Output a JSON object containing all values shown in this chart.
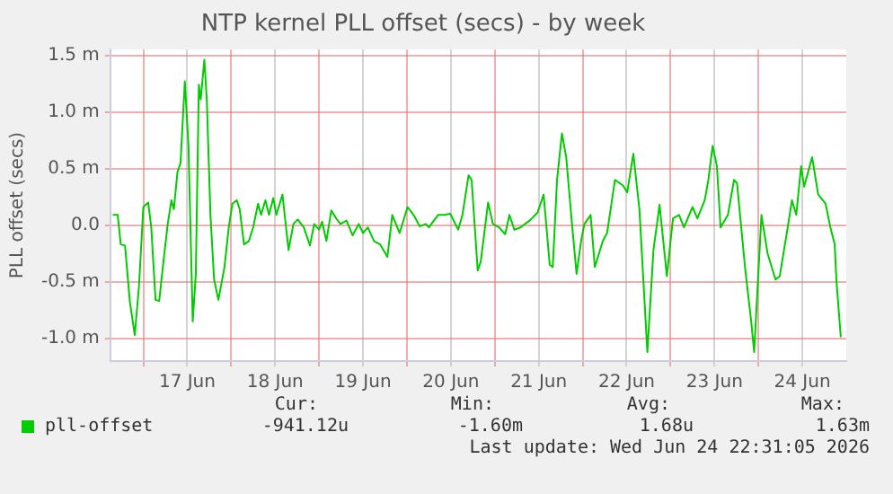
{
  "chart_data": {
    "type": "line",
    "title": "NTP kernel PLL offset (secs) - by week",
    "ylabel": "PLL offset (secs)",
    "xlim": [
      "2026-06-16T15:00",
      "2026-06-25T00:00"
    ],
    "xticks": [
      {
        "value": "2026-06-17T00:00",
        "label": null
      },
      {
        "value": "2026-06-17T12:00",
        "label": "17 Jun"
      },
      {
        "value": "2026-06-18T00:00",
        "label": null
      },
      {
        "value": "2026-06-18T12:00",
        "label": "18 Jun"
      },
      {
        "value": "2026-06-19T00:00",
        "label": null
      },
      {
        "value": "2026-06-19T12:00",
        "label": "19 Jun"
      },
      {
        "value": "2026-06-20T00:00",
        "label": null
      },
      {
        "value": "2026-06-20T12:00",
        "label": "20 Jun"
      },
      {
        "value": "2026-06-21T00:00",
        "label": null
      },
      {
        "value": "2026-06-21T12:00",
        "label": "21 Jun"
      },
      {
        "value": "2026-06-22T00:00",
        "label": null
      },
      {
        "value": "2026-06-22T12:00",
        "label": "22 Jun"
      },
      {
        "value": "2026-06-23T00:00",
        "label": null
      },
      {
        "value": "2026-06-23T12:00",
        "label": "23 Jun"
      },
      {
        "value": "2026-06-24T00:00",
        "label": null
      },
      {
        "value": "2026-06-24T12:00",
        "label": "24 Jun"
      }
    ],
    "ylim": [
      -1.2,
      1.55
    ],
    "yticks": [
      {
        "value": -1,
        "label": "-1.0 m"
      },
      {
        "value": -0.5,
        "label": "-0.5 m"
      },
      {
        "value": 0,
        "label": "0.0"
      },
      {
        "value": 0.5,
        "label": "0.5 m"
      },
      {
        "value": 1,
        "label": "1.0 m"
      },
      {
        "value": 1.5,
        "label": "1.5 m"
      }
    ],
    "grid": true,
    "legend": "bottom",
    "marker": "none",
    "line_style": "solid",
    "x": [
      "2026-06-16T15:40",
      "2026-06-16T17:00",
      "2026-06-16T17:50",
      "2026-06-16T19:00",
      "2026-06-16T20:20",
      "2026-06-16T21:40",
      "2026-06-16T22:50",
      "2026-06-17T00:00",
      "2026-06-17T01:20",
      "2026-06-17T02:10",
      "2026-06-17T03:20",
      "2026-06-17T04:20",
      "2026-06-17T05:30",
      "2026-06-17T06:40",
      "2026-06-17T07:40",
      "2026-06-17T08:20",
      "2026-06-17T09:20",
      "2026-06-17T10:10",
      "2026-06-17T11:20",
      "2026-06-17T12:20",
      "2026-06-17T13:30",
      "2026-06-17T14:20",
      "2026-06-17T15:10",
      "2026-06-17T15:40",
      "2026-06-17T16:40",
      "2026-06-17T17:20",
      "2026-06-17T18:20",
      "2026-06-17T19:20",
      "2026-06-17T20:30",
      "2026-06-17T22:10",
      "2026-06-17T23:20",
      "2026-06-18T00:20",
      "2026-06-18T01:30",
      "2026-06-18T02:20",
      "2026-06-18T03:30",
      "2026-06-18T04:50",
      "2026-06-18T06:00",
      "2026-06-18T07:20",
      "2026-06-18T08:10",
      "2026-06-18T09:20",
      "2026-06-18T10:20",
      "2026-06-18T11:30",
      "2026-06-18T12:20",
      "2026-06-18T14:00",
      "2026-06-18T15:40",
      "2026-06-18T17:00",
      "2026-06-18T18:10",
      "2026-06-18T19:50",
      "2026-06-18T21:30",
      "2026-06-18T22:40",
      "2026-06-19T00:00",
      "2026-06-19T00:50",
      "2026-06-19T02:00",
      "2026-06-19T03:20",
      "2026-06-19T04:40",
      "2026-06-19T05:50",
      "2026-06-19T07:30",
      "2026-06-19T09:10",
      "2026-06-19T10:50",
      "2026-06-19T12:00",
      "2026-06-19T13:20",
      "2026-06-19T15:00",
      "2026-06-19T16:40",
      "2026-06-19T18:40",
      "2026-06-19T20:00",
      "2026-06-19T22:00",
      "2026-06-20T00:10",
      "2026-06-20T01:50",
      "2026-06-20T03:30",
      "2026-06-20T05:10",
      "2026-06-20T06:00",
      "2026-06-20T08:30",
      "2026-06-20T10:10",
      "2026-06-20T11:50",
      "2026-06-20T14:00",
      "2026-06-20T15:10",
      "2026-06-20T16:50",
      "2026-06-20T17:40",
      "2026-06-20T19:20",
      "2026-06-20T20:10",
      "2026-06-20T22:10",
      "2026-06-20T23:30",
      "2026-06-21T01:10",
      "2026-06-21T02:50",
      "2026-06-21T04:00",
      "2026-06-21T05:20",
      "2026-06-21T07:00",
      "2026-06-21T09:30",
      "2026-06-21T11:40",
      "2026-06-21T13:20",
      "2026-06-21T15:00",
      "2026-06-21T15:50",
      "2026-06-21T17:00",
      "2026-06-21T18:20",
      "2026-06-21T19:30",
      "2026-06-21T21:10",
      "2026-06-21T22:20",
      "2026-06-21T23:40",
      "2026-06-22T00:30",
      "2026-06-22T02:10",
      "2026-06-22T03:20",
      "2026-06-22T05:30",
      "2026-06-22T06:40",
      "2026-06-22T08:50",
      "2026-06-22T11:00",
      "2026-06-22T12:10",
      "2026-06-22T13:50",
      "2026-06-22T15:30",
      "2026-06-22T17:40",
      "2026-06-22T19:20",
      "2026-06-22T21:00",
      "2026-06-22T23:00",
      "2026-06-23T00:40",
      "2026-06-23T02:20",
      "2026-06-23T03:40",
      "2026-06-23T06:00",
      "2026-06-23T07:20",
      "2026-06-23T09:20",
      "2026-06-23T10:20",
      "2026-06-23T11:30",
      "2026-06-23T12:40",
      "2026-06-23T13:40",
      "2026-06-23T15:40",
      "2026-06-23T17:20",
      "2026-06-23T18:10",
      "2026-06-23T20:20",
      "2026-06-23T22:00",
      "2026-06-23T22:50",
      "2026-06-24T00:50",
      "2026-06-24T02:30",
      "2026-06-24T04:40",
      "2026-06-24T05:50",
      "2026-06-24T08:00",
      "2026-06-24T09:10",
      "2026-06-24T10:20",
      "2026-06-24T11:40",
      "2026-06-24T12:30",
      "2026-06-24T14:40",
      "2026-06-24T16:20",
      "2026-06-24T18:20",
      "2026-06-24T19:40",
      "2026-06-24T20:50",
      "2026-06-24T21:20",
      "2026-06-24T22:30"
    ],
    "series": [
      {
        "name": "pll-offset",
        "color": "#00cc00",
        "values": [
          0.09,
          0.09,
          -0.17,
          -0.18,
          -0.68,
          -0.97,
          -0.53,
          0.16,
          0.2,
          -0.02,
          -0.66,
          -0.67,
          -0.32,
          0.01,
          0.22,
          0.14,
          0.47,
          0.55,
          1.27,
          0.7,
          -0.85,
          -0.43,
          1.24,
          1.11,
          1.46,
          1.11,
          0.09,
          -0.48,
          -0.66,
          -0.37,
          -0.02,
          0.19,
          0.22,
          0.14,
          -0.17,
          -0.14,
          -0.02,
          0.19,
          0.09,
          0.22,
          0.09,
          0.24,
          0.09,
          0.27,
          -0.22,
          0.01,
          0.05,
          -0.02,
          -0.18,
          0.01,
          -0.04,
          0.03,
          -0.14,
          0.13,
          0.06,
          0.01,
          0.04,
          -0.09,
          0.01,
          -0.07,
          -0.02,
          -0.14,
          -0.17,
          -0.28,
          0.09,
          -0.07,
          0.16,
          0.09,
          -0.01,
          0.01,
          -0.02,
          0.09,
          0.09,
          0.1,
          -0.04,
          0.09,
          0.44,
          0.4,
          -0.4,
          -0.32,
          0.2,
          0.01,
          -0.02,
          -0.08,
          0.09,
          -0.04,
          -0.02,
          0.04,
          0.11,
          0.27,
          -0.35,
          -0.37,
          0.4,
          0.81,
          0.6,
          -0.02,
          -0.43,
          -0.12,
          0.01,
          0.09,
          -0.37,
          -0.14,
          -0.07,
          0.4,
          0.35,
          0.29,
          0.63,
          0.14,
          -1.12,
          -0.22,
          0.18,
          -0.45,
          0.06,
          0.09,
          -0.02,
          0.16,
          0.06,
          0.22,
          0.4,
          0.7,
          0.52,
          -0.02,
          0.09,
          0.4,
          0.37,
          -0.37,
          -0.84,
          -1.12,
          0.09,
          -0.25,
          -0.48,
          -0.45,
          -0.02,
          0.22,
          0.09,
          0.52,
          0.34,
          0.6,
          0.27,
          0.19,
          -0.02,
          -0.17,
          -0.5,
          -0.99
        ]
      }
    ],
    "annotations": [
      "Cur:",
      "Min:",
      "Avg:",
      "Max:",
      "-941.12u",
      "-1.60m",
      "1.68u",
      "1.63m",
      "Last update: Wed Jun 24 22:31:05 2026"
    ]
  }
}
